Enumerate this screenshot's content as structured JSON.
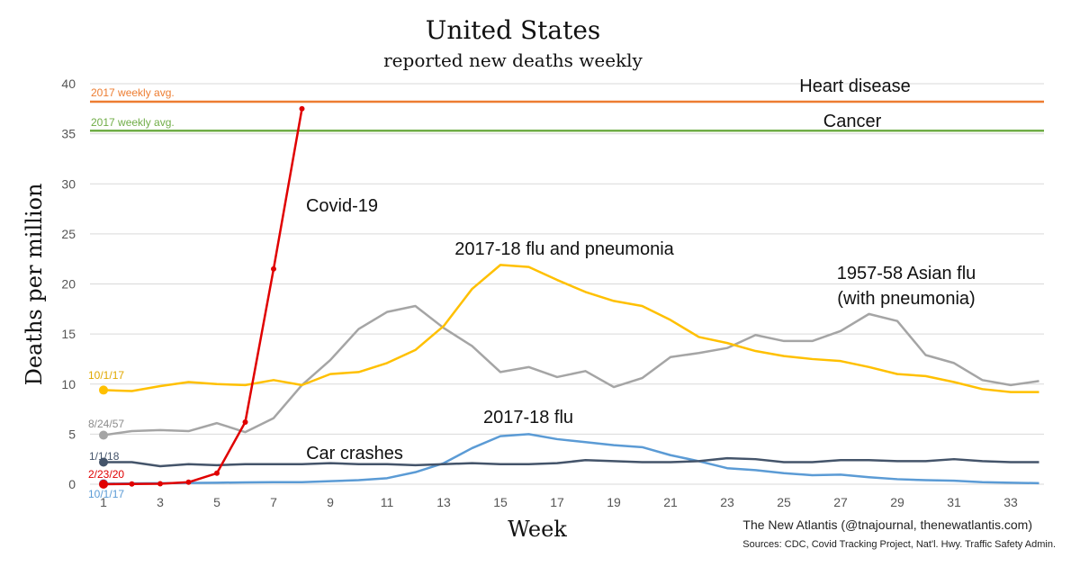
{
  "chart_data": {
    "type": "line",
    "title": "United States",
    "subtitle": "reported new deaths weekly",
    "xlabel": "Week",
    "ylabel": "Deaths per million",
    "xlim": [
      1,
      34
    ],
    "ylim": [
      0,
      40
    ],
    "x_ticks": [
      1,
      3,
      5,
      7,
      9,
      11,
      13,
      15,
      17,
      19,
      21,
      23,
      25,
      27,
      29,
      31,
      33
    ],
    "y_ticks": [
      0,
      5,
      10,
      15,
      20,
      25,
      30,
      35,
      40
    ],
    "grid": "horizontal",
    "reference_lines": [
      {
        "name": "Heart disease",
        "label": "2017 weekly avg.",
        "value": 38.2,
        "color": "#ED7D31"
      },
      {
        "name": "Cancer",
        "label": "2017 weekly avg.",
        "value": 35.3,
        "color": "#70AD47"
      }
    ],
    "series": [
      {
        "name": "1957-58 Asian flu (with pneumonia)",
        "start_label": "8/24/57",
        "color": "#A5A5A5",
        "x": [
          1,
          2,
          3,
          4,
          5,
          6,
          7,
          8,
          9,
          10,
          11,
          12,
          13,
          14,
          15,
          16,
          17,
          18,
          19,
          20,
          21,
          22,
          23,
          24,
          25,
          26,
          27,
          28,
          29,
          30,
          31,
          32,
          33,
          34
        ],
        "values": [
          4.9,
          5.3,
          5.4,
          5.3,
          6.1,
          5.2,
          6.6,
          9.9,
          12.4,
          15.5,
          17.2,
          17.8,
          15.6,
          13.8,
          11.2,
          11.7,
          10.7,
          11.3,
          9.7,
          10.6,
          12.7,
          13.1,
          13.6,
          14.9,
          14.3,
          14.3,
          15.3,
          17.0,
          16.3,
          12.9,
          12.1,
          10.4,
          9.9,
          10.3
        ]
      },
      {
        "name": "2017-18 flu and pneumonia",
        "start_label": "10/1/17",
        "color": "#FFC000",
        "x": [
          1,
          2,
          3,
          4,
          5,
          6,
          7,
          8,
          9,
          10,
          11,
          12,
          13,
          14,
          15,
          16,
          17,
          18,
          19,
          20,
          21,
          22,
          23,
          24,
          25,
          26,
          27,
          28,
          29,
          30,
          31,
          32,
          33,
          34
        ],
        "values": [
          9.4,
          9.3,
          9.8,
          10.2,
          10.0,
          9.9,
          10.4,
          9.9,
          11.0,
          11.2,
          12.1,
          13.4,
          15.8,
          19.5,
          21.9,
          21.7,
          20.4,
          19.2,
          18.3,
          17.8,
          16.4,
          14.7,
          14.1,
          13.3,
          12.8,
          12.5,
          12.3,
          11.7,
          11.0,
          10.8,
          10.2,
          9.5,
          9.2,
          9.2
        ]
      },
      {
        "name": "2017-18 flu",
        "start_label": "10/1/17",
        "color": "#5B9BD5",
        "x": [
          1,
          2,
          3,
          4,
          5,
          6,
          7,
          8,
          9,
          10,
          11,
          12,
          13,
          14,
          15,
          16,
          17,
          18,
          19,
          20,
          21,
          22,
          23,
          24,
          25,
          26,
          27,
          28,
          29,
          30,
          31,
          32,
          33,
          34
        ],
        "values": [
          0.05,
          0.08,
          0.1,
          0.12,
          0.15,
          0.18,
          0.2,
          0.2,
          0.3,
          0.4,
          0.6,
          1.2,
          2.1,
          3.6,
          4.8,
          5.0,
          4.5,
          4.2,
          3.9,
          3.7,
          2.9,
          2.3,
          1.6,
          1.4,
          1.1,
          0.9,
          0.95,
          0.7,
          0.5,
          0.4,
          0.35,
          0.2,
          0.15,
          0.1
        ]
      },
      {
        "name": "Car crashes",
        "start_label": "1/1/18",
        "color": "#44546A",
        "x": [
          1,
          2,
          3,
          4,
          5,
          6,
          7,
          8,
          9,
          10,
          11,
          12,
          13,
          14,
          15,
          16,
          17,
          18,
          19,
          20,
          21,
          22,
          23,
          24,
          25,
          26,
          27,
          28,
          29,
          30,
          31,
          32,
          33,
          34
        ],
        "values": [
          2.2,
          2.2,
          1.8,
          2.0,
          1.9,
          2.0,
          2.0,
          2.0,
          2.1,
          2.0,
          2.0,
          1.9,
          2.0,
          2.1,
          2.0,
          2.0,
          2.1,
          2.4,
          2.3,
          2.2,
          2.2,
          2.3,
          2.6,
          2.5,
          2.2,
          2.2,
          2.4,
          2.4,
          2.3,
          2.3,
          2.5,
          2.3,
          2.2,
          2.2
        ]
      },
      {
        "name": "Covid-19",
        "start_label": "2/23/20",
        "color": "#E00000",
        "x": [
          1,
          2,
          3,
          4,
          5,
          6,
          7,
          8
        ],
        "values": [
          0.0,
          0.02,
          0.05,
          0.2,
          1.1,
          6.2,
          21.5,
          37.5
        ]
      }
    ],
    "series_labels": {
      "covid": "Covid-19",
      "flu_pneumonia": "2017-18 flu and pneumonia",
      "asian_flu_line1": "1957-58 Asian flu",
      "asian_flu_line2": "(with pneumonia)",
      "flu": "2017-18 flu",
      "car": "Car crashes"
    }
  },
  "footer": {
    "credit": "The New Atlantis (@tnajournal, thenewatlantis.com)",
    "sources": "Sources: CDC, Covid Tracking Project, Nat'l. Hwy. Traffic Safety Admin."
  }
}
